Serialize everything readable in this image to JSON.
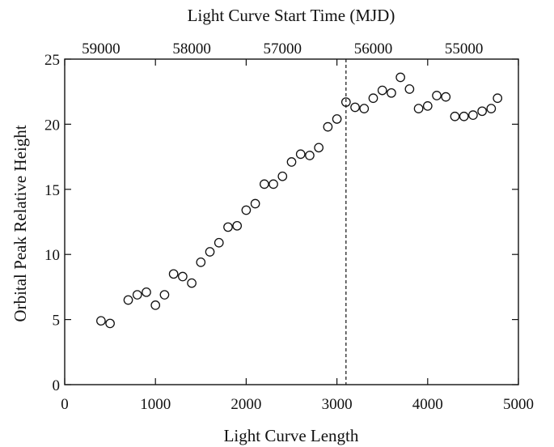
{
  "chart_data": {
    "type": "scatter",
    "xlabel": "Light Curve Length",
    "ylabel": "Orbital Peak Relative Height",
    "top_xlabel": "Light Curve Start Time (MJD)",
    "xlim": [
      0,
      5000
    ],
    "ylim": [
      0,
      25
    ],
    "xticks": [
      0,
      1000,
      2000,
      3000,
      4000,
      5000
    ],
    "yticks": [
      0,
      5,
      10,
      15,
      20,
      25
    ],
    "top_xticks": [
      59000,
      58000,
      57000,
      56000,
      55000
    ],
    "top_axis_mjd_at_length_0": 59400,
    "vline_x": 3100,
    "grid": false,
    "marker": "open-circle",
    "x": [
      400,
      500,
      700,
      800,
      900,
      1000,
      1100,
      1200,
      1300,
      1400,
      1500,
      1600,
      1700,
      1800,
      1900,
      2000,
      2100,
      2200,
      2300,
      2400,
      2500,
      2600,
      2700,
      2800,
      2900,
      3000,
      3100,
      3200,
      3300,
      3400,
      3500,
      3600,
      3700,
      3800,
      3900,
      4000,
      4100,
      4200,
      4300,
      4400,
      4500,
      4600,
      4700,
      4770
    ],
    "y": [
      4.9,
      4.7,
      6.5,
      6.9,
      7.1,
      6.1,
      6.9,
      8.5,
      8.3,
      7.8,
      9.4,
      10.2,
      10.9,
      12.1,
      12.2,
      13.4,
      13.9,
      15.4,
      15.4,
      16.0,
      17.1,
      17.7,
      17.6,
      18.2,
      19.8,
      20.4,
      21.7,
      21.3,
      21.2,
      22.0,
      22.6,
      22.4,
      23.6,
      22.7,
      21.2,
      21.4,
      22.2,
      22.1,
      20.6,
      20.6,
      20.7,
      21.0,
      21.2,
      22.0
    ]
  }
}
